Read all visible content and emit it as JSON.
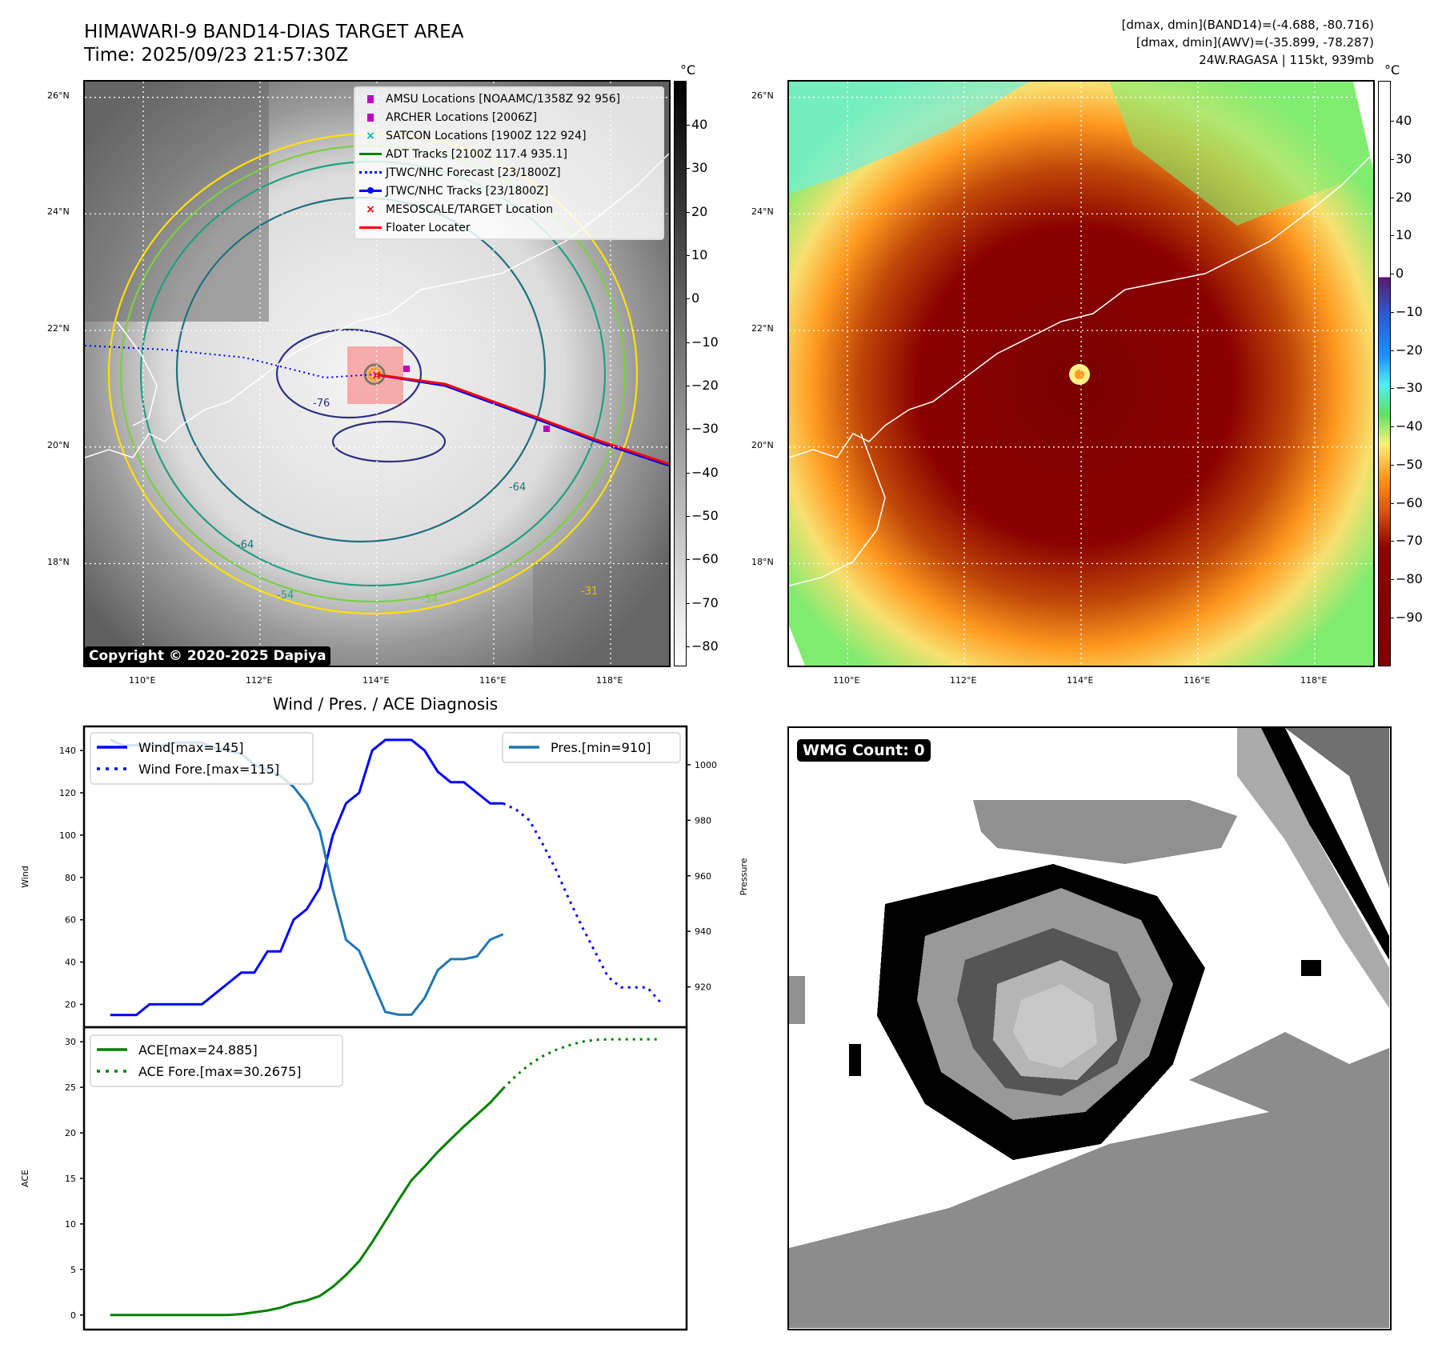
{
  "header": {
    "title": "HIMAWARI-9 BAND14-DIAS TARGET AREA",
    "time": "Time: 2025/09/23 21:57:30Z",
    "stats_band14": "[dmax, dmin](BAND14)=(-4.688, -80.716)",
    "stats_awv": "[dmax, dmin](AWV)=(-35.899, -78.287)",
    "storm": "24W.RAGASA | 115kt, 939mb"
  },
  "map": {
    "lon_labels": [
      "110°E",
      "112°E",
      "114°E",
      "116°E",
      "118°E"
    ],
    "lon_values": [
      110,
      112,
      114,
      116,
      118
    ],
    "lat_labels": [
      "26°N",
      "24°N",
      "22°N",
      "20°N",
      "18°N"
    ],
    "lat_values": [
      26,
      24,
      22,
      20,
      18
    ],
    "lon_range": [
      109,
      119
    ],
    "lat_range": [
      16.25,
      26.27
    ],
    "copyright": "Copyright © 2020-2025 Dapiya",
    "contour_labels": [
      "-76",
      "-76",
      "-64",
      "-64",
      "-54",
      "-54",
      "-31",
      "-31"
    ],
    "legend": [
      {
        "label": "AMSU Locations [NOAAMC/1358Z 92 956]",
        "symbol": "square",
        "color": "#c000c0"
      },
      {
        "label": "ARCHER Locations [2006Z]",
        "symbol": "square",
        "color": "#c000c0"
      },
      {
        "label": "SATCON Locations [1900Z 122 924]",
        "symbol": "x",
        "color": "#00b0b0"
      },
      {
        "label": "ADT Tracks [2100Z 117.4 935.1]",
        "symbol": "line",
        "color": "#008000"
      },
      {
        "label": "JTWC/NHC Forecast [23/1800Z]",
        "symbol": "dotted",
        "color": "#0000ff"
      },
      {
        "label": "JTWC/NHC Tracks [23/1800Z]",
        "symbol": "line-dot",
        "color": "#0000ff"
      },
      {
        "label": "MESOSCALE/TARGET Location",
        "symbol": "x",
        "color": "#ff0000"
      },
      {
        "label": "Floater Locater",
        "symbol": "line",
        "color": "#ff0000"
      }
    ]
  },
  "colorbar_gray": {
    "unit": "°C",
    "ticks": [
      40,
      30,
      20,
      10,
      0,
      -10,
      -20,
      -30,
      -40,
      -50,
      -60,
      -70,
      -80
    ],
    "range": [
      50.1,
      -84.6
    ]
  },
  "colorbar_color": {
    "unit": "°C",
    "ticks": [
      40,
      30,
      20,
      10,
      0,
      -10,
      -20,
      -30,
      -40,
      -50,
      -60,
      -70,
      -80,
      -90
    ],
    "range": [
      50.5,
      -102.8
    ]
  },
  "diagnosis_title": "Wind / Pres. / ACE Diagnosis",
  "wmg": {
    "label": "WMG Count: 0"
  },
  "chart_data": [
    {
      "type": "line",
      "title": "Wind / Pres. / ACE Diagnosis",
      "ylabel": "Wind",
      "y2label": "Pressure",
      "ylim": [
        9.2,
        151.4
      ],
      "y2lim": [
        905.5,
        1013.8
      ],
      "xlim": [
        -2,
        44
      ],
      "yticks": [
        20,
        40,
        60,
        80,
        100,
        120,
        140
      ],
      "y2ticks": [
        920,
        940,
        960,
        980,
        1000
      ],
      "series": [
        {
          "name": "Wind[max=145]",
          "style": "solid",
          "color": "#0000ff",
          "axis": "left",
          "x_start": 0,
          "values": [
            15,
            15,
            15,
            20,
            20,
            20,
            20,
            20,
            25,
            30,
            35,
            35,
            45,
            45,
            60,
            65,
            75,
            100,
            115,
            120,
            140,
            145,
            145,
            145,
            140,
            130,
            125,
            125,
            120,
            115,
            115
          ]
        },
        {
          "name": "Wind Fore.[max=115]",
          "style": "dotted",
          "color": "#0000ff",
          "axis": "left",
          "x_start": 30,
          "values": [
            115,
            112,
            107,
            96,
            84,
            70,
            57,
            45,
            33,
            28,
            28,
            28,
            21
          ]
        },
        {
          "name": "Pres.[min=910]",
          "style": "solid",
          "color": "#1f77b4",
          "axis": "right",
          "x_start": 0,
          "values": [
            1009,
            1007,
            1007,
            1007,
            1007,
            1008,
            1008,
            1008,
            1006,
            1005,
            1004,
            1000,
            998,
            996,
            992,
            986,
            976,
            955,
            937,
            933,
            922,
            911,
            910,
            910,
            916,
            926,
            930,
            930,
            931,
            937,
            939
          ]
        }
      ],
      "legend_left": "upper-left",
      "legend_right": "upper-right"
    },
    {
      "type": "line",
      "ylabel": "ACE",
      "ylim": [
        -1.6,
        31.6
      ],
      "xlim": [
        -2,
        44
      ],
      "yticks": [
        0,
        5,
        10,
        15,
        20,
        25,
        30
      ],
      "series": [
        {
          "name": "ACE[max=24.885]",
          "style": "solid",
          "color": "#008000",
          "x_start": 0,
          "values": [
            0,
            0,
            0,
            0,
            0,
            0,
            0,
            0,
            0,
            0,
            0.1,
            0.3,
            0.5,
            0.8,
            1.3,
            1.6,
            2.1,
            3.1,
            4.4,
            5.9,
            8.0,
            10.3,
            12.6,
            14.8,
            16.3,
            17.9,
            19.3,
            20.7,
            22.0,
            23.3,
            24.885
          ]
        },
        {
          "name": "ACE Fore.[max=30.2675]",
          "style": "dotted",
          "color": "#008000",
          "x_start": 30,
          "values": [
            24.885,
            26.3,
            27.5,
            28.4,
            29.1,
            29.6,
            30.0,
            30.2,
            30.27,
            30.27,
            30.27,
            30.27,
            30.27
          ]
        }
      ],
      "legend": "upper-left"
    }
  ]
}
